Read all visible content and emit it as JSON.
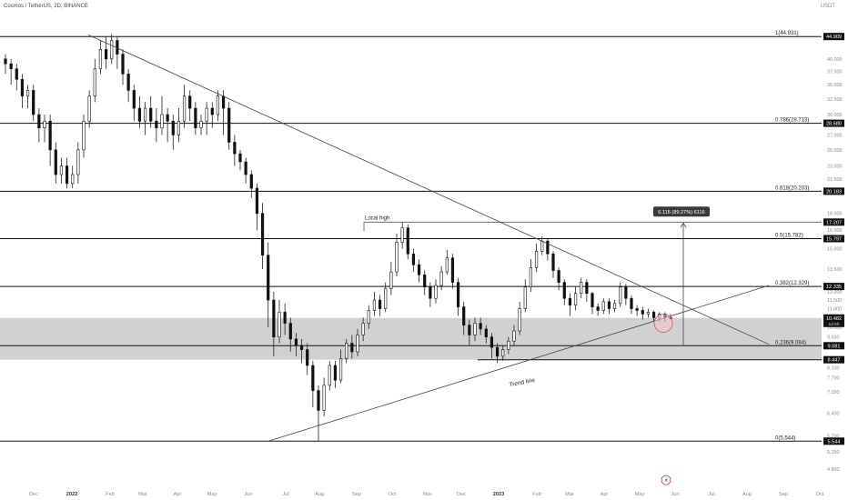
{
  "header": {
    "symbol": "Cosmos / TetherUS, 2D, BINANCE",
    "unit": "USDT"
  },
  "chart_data": {
    "type": "candlestick",
    "title": "",
    "xlabel": "",
    "ylabel": "",
    "y_scale": "log",
    "ylim": [
      4.6,
      52
    ],
    "x_ticks": [
      "Dec",
      "2022",
      "Feb",
      "Mar",
      "Apr",
      "May",
      "Jun",
      "Jul",
      "Aug",
      "Sep",
      "Oct",
      "Nov",
      "Dec",
      "2023",
      "Feb",
      "Mar",
      "Apr",
      "May",
      "Jun",
      "Jul",
      "Aug",
      "Sep",
      "Oct"
    ],
    "y_ticks": [
      4.8,
      5.25,
      5.7,
      6.4,
      7.15,
      7.7,
      8.1,
      8.5,
      9.0,
      9.5,
      10.0,
      10.5,
      11.0,
      11.5,
      12.0,
      13.5,
      15.0,
      16.5,
      18.0,
      20.0,
      21.5,
      23.0,
      25.0,
      27.0,
      28.5,
      30.0,
      32.5,
      35.0,
      37.5,
      40.0
    ],
    "fib_levels": [
      {
        "label": "1(44.931)",
        "price": 44.909,
        "tag": "44.909"
      },
      {
        "label": "0.786(28.713)",
        "price": 28.68,
        "tag": "28.680"
      },
      {
        "label": "0.618(20.203)",
        "price": 20.183,
        "tag": "20.183"
      },
      {
        "label": "0.5(15.782)",
        "price": 15.797,
        "tag": "15.797"
      },
      {
        "label": "0.382(12.329)",
        "price": 12.335,
        "tag": "12.335"
      },
      {
        "label": "0.236(9.084)",
        "price": 9.081,
        "tag": "9.081"
      },
      {
        "label": "0(5.544)",
        "price": 5.544,
        "tag": "5.544"
      }
    ],
    "support_zone": [
      8.447,
      10.482
    ],
    "price_tags": [
      {
        "price": 17.207,
        "tag": "17.207"
      },
      {
        "price": 10.482,
        "tag": "10.482",
        "sub": "1d 6h"
      },
      {
        "price": 8.447,
        "tag": "8.447"
      }
    ],
    "local_high": {
      "label": "Local high",
      "price": 17.207
    },
    "trend_line_label": "Trend line",
    "measure_label": "6.116 (89.27%) 6116",
    "candles": [
      [
        40,
        39,
        41,
        37
      ],
      [
        39,
        38,
        40,
        35
      ],
      [
        38,
        36,
        39,
        34
      ],
      [
        36,
        33,
        37,
        31
      ],
      [
        33,
        34,
        35,
        31
      ],
      [
        34,
        30,
        35,
        29
      ],
      [
        30,
        28,
        31,
        26
      ],
      [
        28,
        29,
        30,
        26
      ],
      [
        29,
        25,
        30,
        23
      ],
      [
        25,
        22,
        26,
        21
      ],
      [
        22,
        23,
        24,
        21
      ],
      [
        23,
        21,
        24,
        20.5
      ],
      [
        21,
        22,
        23,
        20.5
      ],
      [
        22,
        25,
        26,
        21
      ],
      [
        25,
        29,
        30,
        24
      ],
      [
        29,
        33,
        34,
        28
      ],
      [
        33,
        38,
        40,
        32
      ],
      [
        38,
        42,
        44,
        37
      ],
      [
        42,
        40,
        45,
        38
      ],
      [
        40,
        44,
        45.5,
        39
      ],
      [
        44,
        41,
        45,
        38
      ],
      [
        41,
        37,
        42,
        35
      ],
      [
        37,
        34,
        38,
        32
      ],
      [
        34,
        31,
        35,
        29
      ],
      [
        31,
        29,
        33,
        28
      ],
      [
        29,
        31,
        32,
        27
      ],
      [
        31,
        29,
        33,
        28
      ],
      [
        29,
        28,
        31,
        26
      ],
      [
        28,
        30,
        33,
        27
      ],
      [
        30,
        29,
        31,
        26
      ],
      [
        29,
        27,
        30,
        25
      ],
      [
        27,
        29,
        31,
        26
      ],
      [
        29,
        33,
        35,
        28
      ],
      [
        33,
        31,
        34,
        29
      ],
      [
        31,
        28,
        32,
        27
      ],
      [
        28,
        29,
        30,
        27
      ],
      [
        29,
        31,
        32,
        27
      ],
      [
        31,
        30,
        32,
        28
      ],
      [
        30,
        33,
        34,
        29
      ],
      [
        33,
        31,
        34,
        27
      ],
      [
        31,
        26,
        32,
        25
      ],
      [
        26,
        24.5,
        27,
        23
      ],
      [
        24.5,
        23.5,
        25,
        22.5
      ],
      [
        23.5,
        22,
        24,
        21
      ],
      [
        22,
        20.5,
        22.5,
        19.5
      ],
      [
        20.5,
        18,
        21,
        16.5
      ],
      [
        18,
        14.5,
        19,
        13.5
      ],
      [
        14.5,
        11.5,
        15.5,
        10
      ],
      [
        11.5,
        9.5,
        12,
        8.6
      ],
      [
        9.5,
        10.8,
        11.5,
        9.2
      ],
      [
        10.8,
        10.2,
        11.3,
        9.6
      ],
      [
        10.2,
        9.4,
        10.5,
        8.8
      ],
      [
        9.4,
        9.1,
        9.7,
        8.6
      ],
      [
        9.1,
        8.9,
        9.4,
        8.3
      ],
      [
        8.9,
        8.2,
        9.2,
        7.8
      ],
      [
        8.2,
        7.2,
        8.4,
        6.6
      ],
      [
        7.2,
        6.5,
        7.4,
        5.544
      ],
      [
        6.5,
        7.4,
        7.7,
        6.3
      ],
      [
        7.4,
        8.2,
        8.4,
        7.2
      ],
      [
        8.2,
        7.6,
        8.4,
        7.3
      ],
      [
        7.6,
        8.5,
        8.9,
        7.5
      ],
      [
        8.5,
        9.2,
        9.4,
        8.3
      ],
      [
        9.2,
        8.8,
        9.6,
        8.5
      ],
      [
        8.8,
        9.6,
        9.9,
        8.6
      ],
      [
        9.6,
        10.2,
        10.5,
        9.3
      ],
      [
        10.2,
        10.9,
        11.2,
        9.9
      ],
      [
        10.9,
        11.5,
        12,
        10.6
      ],
      [
        11.5,
        11.0,
        11.8,
        10.6
      ],
      [
        11.0,
        12.2,
        12.6,
        10.8
      ],
      [
        12.2,
        13.3,
        14,
        11.8
      ],
      [
        13.3,
        15.5,
        16.2,
        13.0
      ],
      [
        15.5,
        16.7,
        17.207,
        15.0
      ],
      [
        16.7,
        14.6,
        17.0,
        14.2
      ],
      [
        14.6,
        13.8,
        15.0,
        13.3
      ],
      [
        13.8,
        13.1,
        14.2,
        12.6
      ],
      [
        13.1,
        12.3,
        13.4,
        11.8
      ],
      [
        12.3,
        11.6,
        12.6,
        11.1
      ],
      [
        11.6,
        12.4,
        12.8,
        11.3
      ],
      [
        12.4,
        13.3,
        13.7,
        12.1
      ],
      [
        13.3,
        14.3,
        14.9,
        13.1
      ],
      [
        14.3,
        12.6,
        14.6,
        12.2
      ],
      [
        12.6,
        11.1,
        12.9,
        10.6
      ],
      [
        11.1,
        10.1,
        11.4,
        9.6
      ],
      [
        10.1,
        9.6,
        10.4,
        9.1
      ],
      [
        9.6,
        10.2,
        10.5,
        9.3
      ],
      [
        10.2,
        9.9,
        10.5,
        9.6
      ],
      [
        9.9,
        9.5,
        10.1,
        9.2
      ],
      [
        9.5,
        9.0,
        9.7,
        8.5
      ],
      [
        9.0,
        8.6,
        9.2,
        8.3
      ],
      [
        8.6,
        8.9,
        9.1,
        8.4
      ],
      [
        8.9,
        9.3,
        9.5,
        8.7
      ],
      [
        9.3,
        9.8,
        10.1,
        9.1
      ],
      [
        9.8,
        11.0,
        11.4,
        9.6
      ],
      [
        11.0,
        12.3,
        12.8,
        10.8
      ],
      [
        12.3,
        13.6,
        14.2,
        12.0
      ],
      [
        13.6,
        14.8,
        15.4,
        13.3
      ],
      [
        14.8,
        15.6,
        16.0,
        14.5
      ],
      [
        15.6,
        14.6,
        15.8,
        14.1
      ],
      [
        14.6,
        13.4,
        14.8,
        12.9
      ],
      [
        13.4,
        12.6,
        13.6,
        12.1
      ],
      [
        12.6,
        11.6,
        12.8,
        11.2
      ],
      [
        11.6,
        11.2,
        11.9,
        10.6
      ],
      [
        11.2,
        11.9,
        12.3,
        10.9
      ],
      [
        11.9,
        12.6,
        12.9,
        11.6
      ],
      [
        12.6,
        11.9,
        12.8,
        11.4
      ],
      [
        11.9,
        11.1,
        12.0,
        10.7
      ],
      [
        11.1,
        10.9,
        11.3,
        10.6
      ],
      [
        10.9,
        11.4,
        11.6,
        10.7
      ],
      [
        11.4,
        11.0,
        11.6,
        10.7
      ],
      [
        11.0,
        11.3,
        11.5,
        10.8
      ],
      [
        11.3,
        12.3,
        12.6,
        11.1
      ],
      [
        12.3,
        11.6,
        12.5,
        11.2
      ],
      [
        11.6,
        11.0,
        11.8,
        10.7
      ],
      [
        11.0,
        10.9,
        11.2,
        10.6
      ],
      [
        10.9,
        10.7,
        11.1,
        10.4
      ],
      [
        10.7,
        10.8,
        11.0,
        10.5
      ],
      [
        10.8,
        10.5,
        10.9,
        10.3
      ],
      [
        10.5,
        10.7,
        10.8,
        10.3
      ],
      [
        10.7,
        10.5,
        10.8,
        10.3
      ],
      [
        10.5,
        10.482,
        10.7,
        10.4
      ]
    ],
    "grid": false,
    "legend": "none"
  }
}
